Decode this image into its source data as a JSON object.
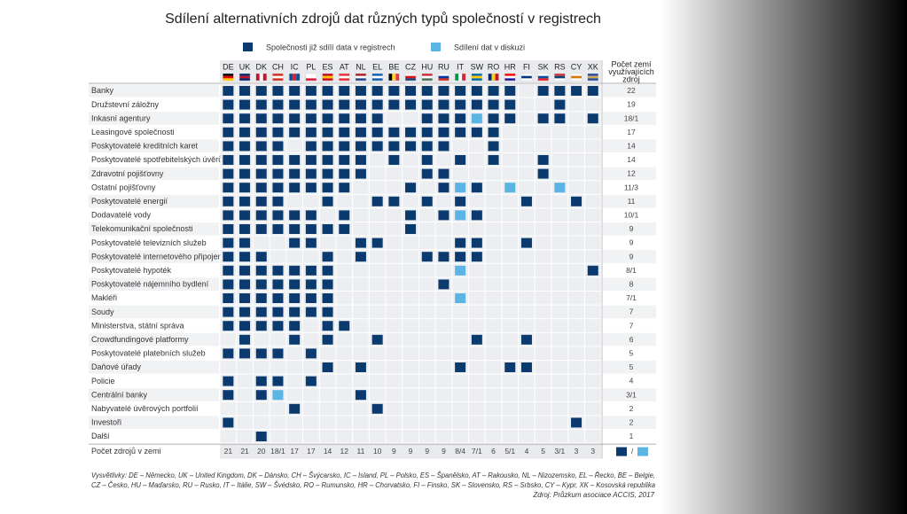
{
  "chart_data": {
    "type": "matrix",
    "title": "Sdílení alternativních zdrojů dat různých typů společností v registrech",
    "legend": [
      {
        "label": "Společnosti již sdílí data v registrech",
        "color": "#0b3a6e"
      },
      {
        "label": "Sdílení dat v diskuzi",
        "color": "#5bb4e3"
      }
    ],
    "count_header": [
      "Počet zemí",
      "využívajících",
      "zdroj"
    ],
    "countries": [
      "DE",
      "UK",
      "DK",
      "CH",
      "IC",
      "PL",
      "ES",
      "AT",
      "NL",
      "EL",
      "BE",
      "CZ",
      "HU",
      "RU",
      "IT",
      "SW",
      "RO",
      "HR",
      "FI",
      "SK",
      "RS",
      "CY",
      "XK"
    ],
    "rows": [
      {
        "label": "Banky",
        "count": "22",
        "values": [
          1,
          1,
          1,
          1,
          1,
          1,
          1,
          1,
          1,
          1,
          1,
          1,
          1,
          1,
          1,
          1,
          1,
          1,
          0,
          1,
          1,
          1,
          1
        ]
      },
      {
        "label": "Družstevní záložny",
        "count": "19",
        "values": [
          1,
          1,
          1,
          1,
          1,
          1,
          1,
          1,
          1,
          1,
          1,
          1,
          1,
          1,
          1,
          1,
          1,
          1,
          0,
          0,
          1,
          0,
          0
        ]
      },
      {
        "label": "Inkasní agentury",
        "count": "18/1",
        "values": [
          1,
          1,
          1,
          1,
          1,
          1,
          1,
          1,
          1,
          1,
          0,
          0,
          1,
          1,
          1,
          2,
          1,
          1,
          0,
          1,
          1,
          0,
          1
        ]
      },
      {
        "label": "Leasingové společnosti",
        "count": "17",
        "values": [
          1,
          1,
          1,
          1,
          1,
          1,
          1,
          1,
          1,
          1,
          1,
          1,
          1,
          1,
          1,
          1,
          1,
          0,
          0,
          0,
          0,
          0,
          0
        ]
      },
      {
        "label": "Poskytovatelé kreditních karet",
        "count": "14",
        "values": [
          1,
          1,
          1,
          1,
          0,
          1,
          1,
          1,
          1,
          1,
          1,
          1,
          1,
          1,
          0,
          0,
          1,
          0,
          0,
          0,
          0,
          0,
          0
        ]
      },
      {
        "label": "Poskytovatelé spotřebitelských úvěrů",
        "count": "14",
        "values": [
          1,
          1,
          1,
          1,
          1,
          1,
          1,
          1,
          1,
          0,
          1,
          0,
          1,
          0,
          1,
          0,
          1,
          0,
          0,
          1,
          0,
          0,
          0
        ]
      },
      {
        "label": "Zdravotní pojišťovny",
        "count": "12",
        "values": [
          1,
          1,
          1,
          1,
          1,
          1,
          1,
          1,
          1,
          0,
          0,
          0,
          1,
          1,
          0,
          0,
          0,
          0,
          0,
          1,
          0,
          0,
          0
        ]
      },
      {
        "label": "Ostatní pojišťovny",
        "count": "11/3",
        "values": [
          1,
          1,
          1,
          1,
          1,
          1,
          1,
          1,
          0,
          0,
          0,
          1,
          0,
          1,
          2,
          1,
          0,
          2,
          0,
          0,
          2,
          0,
          0
        ]
      },
      {
        "label": "Poskytovatelé energií",
        "count": "11",
        "values": [
          1,
          1,
          1,
          1,
          0,
          0,
          1,
          0,
          0,
          1,
          1,
          0,
          1,
          0,
          1,
          0,
          0,
          0,
          1,
          0,
          0,
          1,
          0
        ]
      },
      {
        "label": "Dodavatelé vody",
        "count": "10/1",
        "values": [
          1,
          1,
          1,
          1,
          1,
          1,
          0,
          1,
          0,
          0,
          0,
          1,
          0,
          1,
          2,
          1,
          0,
          0,
          0,
          0,
          0,
          0,
          0
        ]
      },
      {
        "label": "Telekomunikační společnosti",
        "count": "9",
        "values": [
          1,
          1,
          1,
          1,
          1,
          1,
          1,
          1,
          0,
          0,
          0,
          1,
          0,
          0,
          0,
          0,
          0,
          0,
          0,
          0,
          0,
          0,
          0
        ]
      },
      {
        "label": "Poskytovatelé televizních služeb",
        "count": "9",
        "values": [
          1,
          1,
          0,
          0,
          1,
          1,
          0,
          0,
          1,
          1,
          0,
          0,
          0,
          0,
          1,
          1,
          0,
          0,
          1,
          0,
          0,
          0,
          0
        ]
      },
      {
        "label": "Poskytovatelé internetového připojení",
        "count": "9",
        "values": [
          1,
          1,
          1,
          0,
          0,
          0,
          1,
          0,
          1,
          0,
          0,
          0,
          1,
          1,
          1,
          1,
          0,
          0,
          0,
          0,
          0,
          0,
          0
        ]
      },
      {
        "label": "Poskytovatelé hypoték",
        "count": "8/1",
        "values": [
          1,
          1,
          1,
          1,
          1,
          1,
          1,
          0,
          0,
          0,
          0,
          0,
          0,
          0,
          2,
          0,
          0,
          0,
          0,
          0,
          0,
          0,
          1
        ]
      },
      {
        "label": "Poskytovatelé nájemního bydlení",
        "count": "8",
        "values": [
          1,
          1,
          1,
          1,
          1,
          1,
          1,
          0,
          0,
          0,
          0,
          0,
          0,
          1,
          0,
          0,
          0,
          0,
          0,
          0,
          0,
          0,
          0
        ]
      },
      {
        "label": "Makléři",
        "count": "7/1",
        "values": [
          1,
          1,
          1,
          1,
          1,
          1,
          1,
          0,
          0,
          0,
          0,
          0,
          0,
          0,
          2,
          0,
          0,
          0,
          0,
          0,
          0,
          0,
          0
        ]
      },
      {
        "label": "Soudy",
        "count": "7",
        "values": [
          1,
          1,
          1,
          1,
          1,
          1,
          1,
          0,
          0,
          0,
          0,
          0,
          0,
          0,
          0,
          0,
          0,
          0,
          0,
          0,
          0,
          0,
          0
        ]
      },
      {
        "label": "Ministerstva, státní správa",
        "count": "7",
        "values": [
          1,
          1,
          1,
          1,
          1,
          0,
          1,
          1,
          0,
          0,
          0,
          0,
          0,
          0,
          0,
          0,
          0,
          0,
          0,
          0,
          0,
          0,
          0
        ]
      },
      {
        "label": "Crowdfundingové platformy",
        "count": "6",
        "values": [
          0,
          1,
          0,
          0,
          1,
          0,
          1,
          0,
          0,
          1,
          0,
          0,
          0,
          0,
          0,
          1,
          0,
          0,
          1,
          0,
          0,
          0,
          0
        ]
      },
      {
        "label": "Poskytovatelé platebních služeb",
        "count": "5",
        "values": [
          1,
          1,
          1,
          1,
          0,
          1,
          0,
          0,
          0,
          0,
          0,
          0,
          0,
          0,
          0,
          0,
          0,
          0,
          0,
          0,
          0,
          0,
          0
        ]
      },
      {
        "label": "Daňové úřady",
        "count": "5",
        "values": [
          0,
          0,
          0,
          0,
          0,
          0,
          1,
          0,
          1,
          0,
          0,
          0,
          0,
          0,
          1,
          0,
          0,
          1,
          1,
          0,
          0,
          0,
          0
        ]
      },
      {
        "label": "Policie",
        "count": "4",
        "values": [
          1,
          0,
          1,
          1,
          0,
          1,
          0,
          0,
          0,
          0,
          0,
          0,
          0,
          0,
          0,
          0,
          0,
          0,
          0,
          0,
          0,
          0,
          0
        ]
      },
      {
        "label": "Centrální banky",
        "count": "3/1",
        "values": [
          1,
          0,
          1,
          2,
          0,
          0,
          0,
          0,
          1,
          0,
          0,
          0,
          0,
          0,
          0,
          0,
          0,
          0,
          0,
          0,
          0,
          0,
          0
        ]
      },
      {
        "label": "Nabyvatelé úvěrových portfolií",
        "count": "2",
        "values": [
          0,
          0,
          0,
          0,
          1,
          0,
          0,
          0,
          0,
          1,
          0,
          0,
          0,
          0,
          0,
          0,
          0,
          0,
          0,
          0,
          0,
          0,
          0
        ]
      },
      {
        "label": "Investoři",
        "count": "2",
        "values": [
          1,
          0,
          0,
          0,
          0,
          0,
          0,
          0,
          0,
          0,
          0,
          0,
          0,
          0,
          0,
          0,
          0,
          0,
          0,
          0,
          0,
          1,
          0
        ]
      },
      {
        "label": "Další",
        "count": "1",
        "values": [
          0,
          0,
          1,
          0,
          0,
          0,
          0,
          0,
          0,
          0,
          0,
          0,
          0,
          0,
          0,
          0,
          0,
          0,
          0,
          0,
          0,
          0,
          0
        ]
      }
    ],
    "total_label": "Počet zdrojů v zemi",
    "totals": [
      "21",
      "21",
      "20",
      "18/1",
      "17",
      "17",
      "14",
      "12",
      "11",
      "10",
      "9",
      "9",
      "9",
      "9",
      "8/4",
      "7/1",
      "6",
      "5/1",
      "4",
      "5",
      "3/1",
      "3",
      "3"
    ],
    "total_separator": "/",
    "notes": [
      "Vysvětlivky: DE – Německo, UK – United Kingdom, DK – Dánsko, CH – Švýcarsko, IC – Island, PL – Polsko, ES – Španělsko, AT – Rakousko, NL – Nizozemsko, EL – Řecko, BE – Belgie,",
      "CZ – Česko, HU – Maďarsko, RU – Rusko, IT – Itálie, SW – Švédsko, RO – Rumunsko, HR – Chorvatsko, FI – Finsko, SK – Slovensko, RS – Srbsko, CY – Kypr, XK – Kosovská republika"
    ],
    "source": "Zdroj: Průzkum asociace ACCIS, 2017"
  }
}
